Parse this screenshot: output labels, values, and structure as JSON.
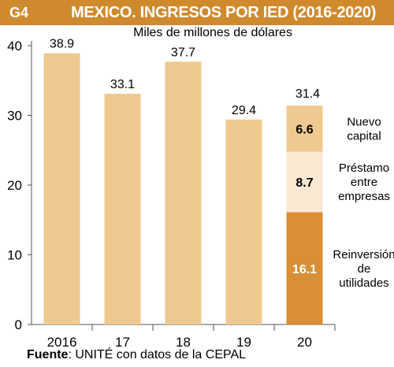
{
  "header": {
    "tag": "G4",
    "title": "MEXICO. INGRESOS POR IED (2016-2020)"
  },
  "subtitle": "Miles de millones de dólares",
  "source": {
    "label": "Fuente",
    "text": ": UNITÉ con datos de la CEPAL"
  },
  "colors": {
    "banner": "#cf8a2e",
    "bar": "#efc98f",
    "nuevo_capital": "#efc98f",
    "prestamo": "#fbe8d2",
    "reinversion": "#d98f33",
    "axis": "#555555"
  },
  "chart_data": {
    "type": "bar",
    "categories": [
      "2016",
      "17",
      "18",
      "19",
      "20"
    ],
    "values": [
      38.9,
      33.1,
      37.7,
      29.4,
      31.4
    ],
    "value_labels": [
      "38.9",
      "33.1",
      "37.7",
      "29.4",
      "31.4"
    ],
    "ylim": [
      0,
      40
    ],
    "yticks": [
      0,
      10,
      20,
      30,
      40
    ],
    "stacked_last": {
      "category": "20",
      "segments": [
        {
          "name": "Reinversión de utilidades",
          "lines": [
            "Reinversión",
            "de",
            "utilidades"
          ],
          "value": 16.1,
          "label": "16.1"
        },
        {
          "name": "Préstamo entre empresas",
          "lines": [
            "Préstamo",
            "entre",
            "empresas"
          ],
          "value": 8.7,
          "label": "8.7"
        },
        {
          "name": "Nuevo capital",
          "lines": [
            "Nuevo",
            "capital"
          ],
          "value": 6.6,
          "label": "6.6"
        }
      ]
    }
  }
}
